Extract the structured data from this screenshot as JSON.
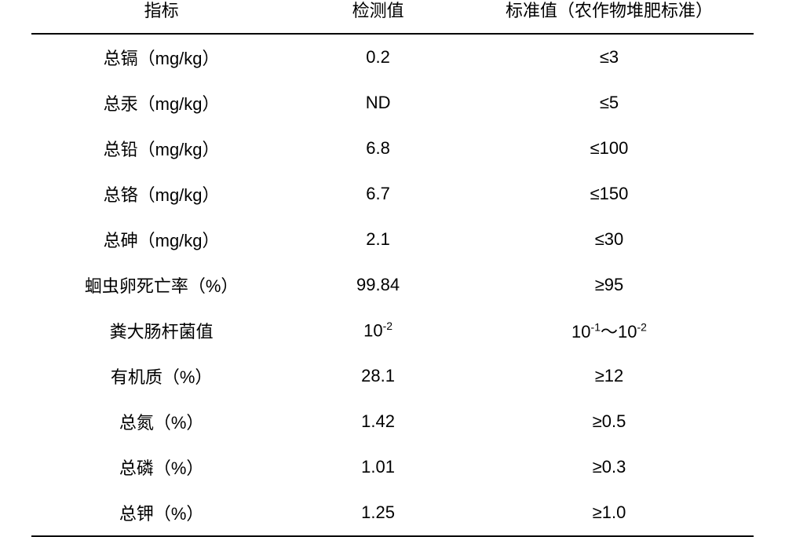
{
  "table": {
    "type": "table",
    "background_color": "#ffffff",
    "text_color": "#000000",
    "border_color": "#000000",
    "font_family": "SimSun",
    "header_fontsize": 22,
    "cell_fontsize": 22,
    "columns": [
      {
        "key": "indicator",
        "label": "指标",
        "width": "36%",
        "align": "center"
      },
      {
        "key": "detected",
        "label": "检测值",
        "width": "24%",
        "align": "center"
      },
      {
        "key": "standard",
        "label": "标准值（农作物堆肥标准）",
        "width": "40%",
        "align": "center"
      }
    ],
    "rows": [
      {
        "indicator": "总镉（mg/kg）",
        "detected": "0.2",
        "standard": "≤3"
      },
      {
        "indicator": "总汞（mg/kg）",
        "detected": "ND",
        "standard": "≤5"
      },
      {
        "indicator": "总铅（mg/kg）",
        "detected": "6.8",
        "standard": "≤100"
      },
      {
        "indicator": "总铬（mg/kg）",
        "detected": "6.7",
        "standard": "≤150"
      },
      {
        "indicator": "总砷（mg/kg）",
        "detected": "2.1",
        "standard": "≤30"
      },
      {
        "indicator": "蛔虫卵死亡率（%）",
        "detected": "99.84",
        "standard": "≥95"
      },
      {
        "indicator": "粪大肠杆菌值",
        "detected_html": "10<sup>-2</sup>",
        "standard_html": "10<sup>-1</sup>～10<sup>-2</sup>"
      },
      {
        "indicator": "有机质（%）",
        "detected": "28.1",
        "standard": "≥12"
      },
      {
        "indicator": "总氮（%）",
        "detected": "1.42",
        "standard": "≥0.5"
      },
      {
        "indicator": "总磷（%）",
        "detected": "1.01",
        "standard": "≥0.3"
      },
      {
        "indicator": "总钾（%）",
        "detected": "1.25",
        "standard": "≥1.0"
      }
    ]
  }
}
